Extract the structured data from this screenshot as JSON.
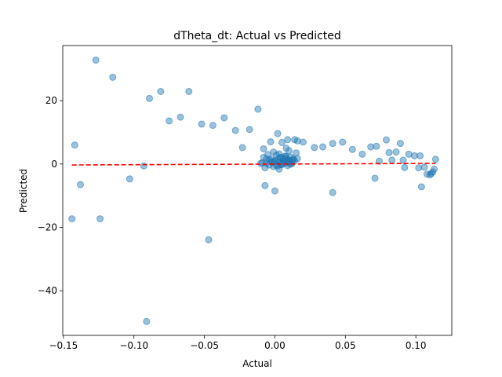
{
  "chart_data": {
    "type": "scatter",
    "title": "dTheta_dt: Actual vs Predicted",
    "xlabel": "Actual",
    "ylabel": "Predicted",
    "xlim": [
      -0.1505,
      0.1255
    ],
    "ylim": [
      -54.1,
      37.4
    ],
    "xticks": [
      -0.15,
      -0.1,
      -0.05,
      0.0,
      0.05,
      0.1
    ],
    "xtick_labels": [
      "−0.15",
      "−0.10",
      "−0.05",
      "0.00",
      "0.05",
      "0.10"
    ],
    "yticks": [
      -40,
      -20,
      0,
      20
    ],
    "ytick_labels": [
      "−40",
      "−20",
      "0",
      "20"
    ],
    "grid": false,
    "point_color": "#1f77b4",
    "line_color": "#ff0000",
    "series": [
      {
        "name": "",
        "kind": "points",
        "x": [
          -0.127,
          -0.115,
          -0.089,
          -0.081,
          -0.061,
          -0.075,
          -0.067,
          -0.052,
          -0.044,
          -0.036,
          -0.028,
          -0.018,
          -0.023,
          -0.012,
          -0.008,
          -0.003,
          0.002,
          0.005,
          0.009,
          0.014,
          0.016,
          0.02,
          0.028,
          0.034,
          0.041,
          0.048,
          0.055,
          0.062,
          0.068,
          0.072,
          0.079,
          0.081,
          0.086,
          0.089,
          0.095,
          0.099,
          0.103,
          -0.142,
          -0.138,
          -0.144,
          -0.124,
          -0.103,
          -0.093,
          -0.047,
          -0.091,
          -0.007,
          0.0,
          0.041,
          0.071,
          0.074,
          0.083,
          0.091,
          0.092,
          0.102,
          0.104,
          0.108,
          0.111,
          0.113,
          0.114,
          0.112,
          0.106,
          0.11,
          -0.009,
          -0.006,
          -0.004,
          -0.002,
          0.0,
          0.001,
          0.002,
          0.003,
          0.004,
          0.005,
          0.006,
          0.007,
          0.008,
          0.009,
          0.01,
          0.011,
          0.012,
          0.013,
          0.015,
          -0.008,
          -0.005,
          -0.003,
          -0.001,
          0.001,
          0.003,
          0.005,
          0.007,
          0.009,
          0.011,
          -0.007,
          -0.002,
          0.002,
          0.006,
          0.01,
          0.014,
          -0.01,
          -0.004,
          0.0,
          0.004,
          0.008,
          0.012,
          0.016,
          -0.006,
          0.003,
          0.007,
          0.011,
          -0.001,
          0.004,
          0.009,
          0.013,
          0.008,
          0.01
        ],
        "y": [
          32.8,
          27.4,
          20.7,
          22.9,
          22.9,
          13.6,
          14.8,
          12.6,
          12.2,
          14.6,
          10.6,
          10.9,
          5.2,
          17.3,
          4.8,
          7.0,
          9.6,
          6.8,
          7.7,
          7.7,
          7.3,
          6.9,
          5.2,
          5.4,
          6.5,
          6.9,
          4.6,
          3.1,
          5.4,
          5.6,
          7.6,
          3.6,
          3.8,
          6.5,
          3.1,
          2.6,
          2.6,
          6.0,
          -6.5,
          -17.3,
          -17.3,
          -4.7,
          -0.6,
          -23.9,
          -49.7,
          -6.8,
          -8.5,
          -9.0,
          -4.5,
          0.9,
          1.2,
          1.2,
          -1.1,
          -1.2,
          -7.2,
          -3.2,
          -3.0,
          -1.6,
          1.5,
          -2.5,
          -1.0,
          -3.4,
          0.4,
          0.2,
          -0.3,
          0.8,
          1.0,
          -0.4,
          1.5,
          0.6,
          2.1,
          -0.2,
          1.1,
          0.3,
          1.8,
          -0.5,
          0.9,
          2.2,
          0.1,
          1.4,
          3.5,
          2.1,
          3.0,
          1.6,
          -0.8,
          2.8,
          3.2,
          0.0,
          2.5,
          1.2,
          -0.1,
          -1.2,
          0.5,
          -0.6,
          1.9,
          0.7,
          1.0,
          0.2,
          1.3,
          0.8,
          -0.2,
          2.4,
          0.6,
          1.7,
          1.5,
          -1.6,
          0.9,
          1.1,
          3.8,
          2.0,
          0.4,
          1.6,
          5.0,
          4.2
        ]
      },
      {
        "name": "",
        "kind": "ideal-line",
        "x": [
          -0.144,
          0.114
        ],
        "y": [
          -0.3,
          0.2
        ]
      }
    ]
  }
}
